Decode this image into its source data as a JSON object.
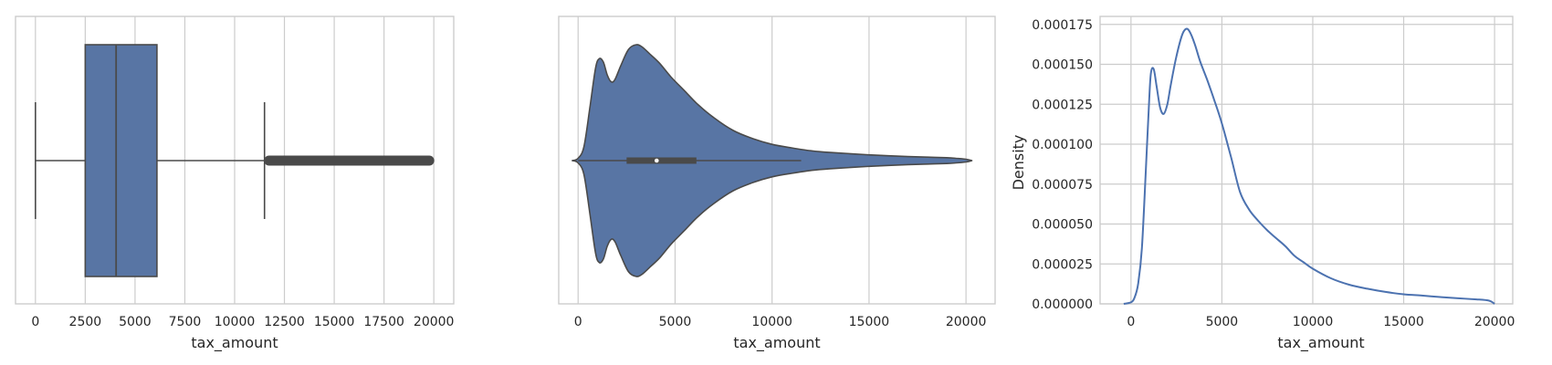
{
  "colors": {
    "fill": "#5875a4",
    "edge": "#4a4a4a",
    "kde_line": "#4c72b0",
    "grid": "#cccccc"
  },
  "chart_data": [
    {
      "type": "box",
      "xlabel": "tax_amount",
      "ylabel": "",
      "xlim": [
        -1000,
        21000
      ],
      "xticks": [
        "0",
        "2500",
        "5000",
        "7500",
        "10000",
        "12500",
        "15000",
        "17500",
        "20000"
      ],
      "xtick_values": [
        0,
        2500,
        5000,
        7500,
        10000,
        12500,
        15000,
        17500,
        20000
      ],
      "grid": "vertical",
      "stats": {
        "whisker_low": 0,
        "q1": 2500,
        "median": 4050,
        "q3": 6100,
        "whisker_high": 11500,
        "outliers_from": 11500,
        "outliers_to": 20000
      }
    },
    {
      "type": "violin",
      "xlabel": "tax_amount",
      "ylabel": "",
      "xlim": [
        -1000,
        21500
      ],
      "xticks": [
        "0",
        "5000",
        "10000",
        "15000",
        "20000"
      ],
      "xtick_values": [
        0,
        5000,
        10000,
        15000,
        20000
      ],
      "grid": "vertical",
      "inner_box": {
        "q1": 2500,
        "median": 4050,
        "q3": 6100,
        "whisker_low": 0,
        "whisker_high": 11500
      },
      "density_profile": {
        "x": [
          -300,
          0,
          300,
          600,
          900,
          1100,
          1300,
          1500,
          1700,
          1900,
          2200,
          2600,
          3000,
          3300,
          3700,
          4200,
          4800,
          5500,
          6200,
          7000,
          8000,
          9000,
          10000,
          11000,
          12000,
          13000,
          14000,
          15000,
          16000,
          17000,
          18000,
          19000,
          19500,
          20000,
          20300
        ],
        "half_width": [
          0,
          0.02,
          0.12,
          0.45,
          0.8,
          0.88,
          0.85,
          0.74,
          0.68,
          0.7,
          0.82,
          0.96,
          1.0,
          0.98,
          0.92,
          0.84,
          0.72,
          0.6,
          0.48,
          0.37,
          0.26,
          0.19,
          0.14,
          0.11,
          0.085,
          0.07,
          0.06,
          0.05,
          0.042,
          0.035,
          0.03,
          0.025,
          0.02,
          0.012,
          0
        ]
      }
    },
    {
      "type": "line",
      "xlabel": "tax_amount",
      "ylabel": "Density",
      "xlim": [
        -1700,
        21000
      ],
      "ylim": [
        0,
        0.00018
      ],
      "xticks": [
        "0",
        "5000",
        "10000",
        "15000",
        "20000"
      ],
      "xtick_values": [
        0,
        5000,
        10000,
        15000,
        20000
      ],
      "yticks": [
        "0.000000",
        "0.000025",
        "0.000050",
        "0.000075",
        "0.000100",
        "0.000125",
        "0.000150",
        "0.000175"
      ],
      "ytick_values": [
        0,
        2.5e-05,
        5e-05,
        7.5e-05,
        0.0001,
        0.000125,
        0.00015,
        0.000175
      ],
      "grid": "both",
      "series": [
        {
          "x": [
            -400,
            0,
            200,
            400,
            600,
            800,
            1000,
            1100,
            1250,
            1400,
            1600,
            1800,
            2000,
            2200,
            2500,
            2800,
            3000,
            3200,
            3500,
            3800,
            4200,
            4600,
            5000,
            5500,
            6000,
            6500,
            7000,
            7500,
            8000,
            8500,
            9000,
            9500,
            10000,
            11000,
            12000,
            13000,
            14000,
            15000,
            16000,
            17000,
            18000,
            19000,
            19700,
            20000
          ],
          "y": [
            0,
            1e-06,
            4e-06,
            1.3e-05,
            3.5e-05,
            8e-05,
            0.000128,
            0.000145,
            0.000147,
            0.000137,
            0.000123,
            0.000119,
            0.000125,
            0.000138,
            0.000155,
            0.000168,
            0.000172,
            0.000171,
            0.000163,
            0.000152,
            0.00014,
            0.000127,
            0.000113,
            9.2e-05,
            7e-05,
            5.9e-05,
            5.2e-05,
            4.6e-05,
            4.1e-05,
            3.6e-05,
            3e-05,
            2.6e-05,
            2.2e-05,
            1.6e-05,
            1.2e-05,
            9.5e-06,
            7.5e-06,
            6e-06,
            5.2e-06,
            4.3e-06,
            3.5e-06,
            2.8e-06,
            2e-06,
            0
          ]
        }
      ]
    }
  ]
}
